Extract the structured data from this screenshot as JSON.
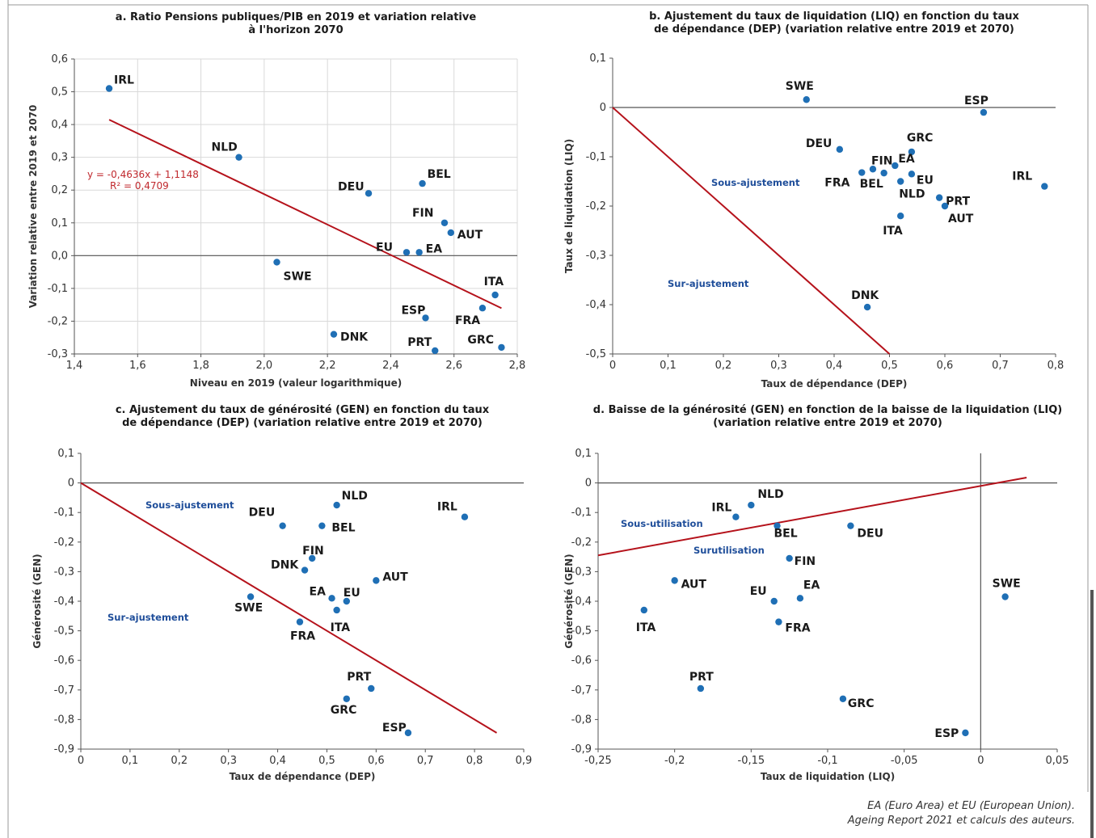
{
  "colors": {
    "point": "#1f6fb5",
    "fit_line": "#b5121b",
    "grid": "#d9d9d9",
    "zero_line": "#555555",
    "annotation": "#1f4e9a"
  },
  "footnote": {
    "line1": "EA (Euro Area) et EU (European Union).",
    "line2_italic": "Ageing Report 2021",
    "line2_rest": " et calculs des auteurs."
  },
  "chart_data": [
    {
      "id": "a",
      "type": "scatter",
      "title": "a. Ratio Pensions publiques/PIB en 2019 et variation relative",
      "title_line2": "à l'horizon 2070",
      "xlabel": "Niveau en 2019 (valeur logarithmique)",
      "ylabel": "Variation relative entre 2019 et 2070",
      "xlim": [
        1.4,
        2.8
      ],
      "ylim": [
        -0.3,
        0.6
      ],
      "xticks": [
        1.4,
        1.6,
        1.8,
        2.0,
        2.2,
        2.4,
        2.6,
        2.8
      ],
      "xtick_labels": [
        "1,4",
        "1,6",
        "1,8",
        "2,0",
        "2,2",
        "2,4",
        "2,6",
        "2,8"
      ],
      "yticks": [
        0.6,
        0.5,
        0.4,
        0.3,
        0.2,
        0.1,
        0.0,
        -0.1,
        -0.2,
        -0.3
      ],
      "ytick_labels": [
        "0,6",
        "0,5",
        "0,4",
        "0,3",
        "0,2",
        "0,1",
        "0,0",
        "-0,1",
        "-0,2",
        "-0,3"
      ],
      "grid": true,
      "points": [
        {
          "label": "IRL",
          "x": 1.51,
          "y": 0.51
        },
        {
          "label": "NLD",
          "x": 1.92,
          "y": 0.3
        },
        {
          "label": "DEU",
          "x": 2.33,
          "y": 0.19
        },
        {
          "label": "BEL",
          "x": 2.5,
          "y": 0.22
        },
        {
          "label": "FIN",
          "x": 2.57,
          "y": 0.1
        },
        {
          "label": "AUT",
          "x": 2.59,
          "y": 0.07
        },
        {
          "label": "EU",
          "x": 2.45,
          "y": 0.01
        },
        {
          "label": "EA",
          "x": 2.49,
          "y": 0.01
        },
        {
          "label": "SWE",
          "x": 2.04,
          "y": -0.02
        },
        {
          "label": "ITA",
          "x": 2.73,
          "y": -0.12
        },
        {
          "label": "ESP",
          "x": 2.51,
          "y": -0.19
        },
        {
          "label": "FRA",
          "x": 2.69,
          "y": -0.16
        },
        {
          "label": "DNK",
          "x": 2.22,
          "y": -0.24
        },
        {
          "label": "PRT",
          "x": 2.54,
          "y": -0.29
        },
        {
          "label": "GRC",
          "x": 2.75,
          "y": -0.28
        }
      ],
      "fit_line": {
        "x": [
          1.51,
          2.75
        ],
        "y": [
          0.4147,
          -0.1603
        ]
      },
      "equation": "y = -0,4636x + 1,1148",
      "r2": "R² = 0,4709",
      "annotations": []
    },
    {
      "id": "b",
      "type": "scatter",
      "title": "b. Ajustement du taux de liquidation (LIQ) en fonction du taux",
      "title_line2": "de dépendance (DEP) (variation relative entre 2019 et 2070)",
      "xlabel": "Taux de dépendance (DEP)",
      "ylabel": "Taux de liquidation (LIQ)",
      "xlim": [
        0,
        0.8
      ],
      "ylim": [
        -0.5,
        0.1
      ],
      "xticks": [
        0,
        0.1,
        0.2,
        0.3,
        0.4,
        0.5,
        0.6,
        0.7,
        0.8
      ],
      "xtick_labels": [
        "0",
        "0,1",
        "0,2",
        "0,3",
        "0,4",
        "0,5",
        "0,6",
        "0,7",
        "0,8"
      ],
      "yticks": [
        0.1,
        0,
        -0.1,
        -0.2,
        -0.3,
        -0.4,
        -0.5
      ],
      "ytick_labels": [
        "0,1",
        "0",
        "-0,1",
        "-0,2",
        "-0,3",
        "-0,4",
        "-0,5"
      ],
      "grid": false,
      "points": [
        {
          "label": "SWE",
          "x": 0.35,
          "y": 0.016
        },
        {
          "label": "ESP",
          "x": 0.67,
          "y": -0.01
        },
        {
          "label": "DEU",
          "x": 0.41,
          "y": -0.085
        },
        {
          "label": "GRC",
          "x": 0.54,
          "y": -0.09
        },
        {
          "label": "FIN",
          "x": 0.47,
          "y": -0.125
        },
        {
          "label": "FRA",
          "x": 0.45,
          "y": -0.132
        },
        {
          "label": "BEL",
          "x": 0.49,
          "y": -0.133
        },
        {
          "label": "EA",
          "x": 0.51,
          "y": -0.118
        },
        {
          "label": "EU",
          "x": 0.54,
          "y": -0.135
        },
        {
          "label": "NLD",
          "x": 0.52,
          "y": -0.15
        },
        {
          "label": "IRL",
          "x": 0.78,
          "y": -0.16
        },
        {
          "label": "PRT",
          "x": 0.59,
          "y": -0.183
        },
        {
          "label": "AUT",
          "x": 0.6,
          "y": -0.2
        },
        {
          "label": "ITA",
          "x": 0.52,
          "y": -0.22
        },
        {
          "label": "DNK",
          "x": 0.46,
          "y": -0.405
        }
      ],
      "fit_line": {
        "x": [
          0,
          0.5
        ],
        "y": [
          0,
          -0.5
        ]
      },
      "annotations": [
        "Sous-ajustement",
        "Sur-ajustement"
      ]
    },
    {
      "id": "c",
      "type": "scatter",
      "title": "c. Ajustement du taux de générosité (GEN) en fonction du taux",
      "title_line2": "de dépendance (DEP) (variation relative entre 2019 et 2070)",
      "xlabel": "Taux de dépendance (DEP)",
      "ylabel": "Générosité (GEN)",
      "xlim": [
        0,
        0.9
      ],
      "ylim": [
        -0.9,
        0.1
      ],
      "xticks": [
        0,
        0.1,
        0.2,
        0.3,
        0.4,
        0.5,
        0.6,
        0.7,
        0.8,
        0.9
      ],
      "xtick_labels": [
        "0",
        "0,1",
        "0,2",
        "0,3",
        "0,4",
        "0,5",
        "0,6",
        "0,7",
        "0,8",
        "0,9"
      ],
      "yticks": [
        0.1,
        0,
        -0.1,
        -0.2,
        -0.3,
        -0.4,
        -0.5,
        -0.6,
        -0.7,
        -0.8,
        -0.9
      ],
      "ytick_labels": [
        "0,1",
        "0",
        "-0,1",
        "-0,2",
        "-0,3",
        "-0,4",
        "-0,5",
        "-0,6",
        "-0,7",
        "-0,8",
        "-0,9"
      ],
      "grid": false,
      "points": [
        {
          "label": "NLD",
          "x": 0.52,
          "y": -0.075
        },
        {
          "label": "IRL",
          "x": 0.78,
          "y": -0.115
        },
        {
          "label": "DEU",
          "x": 0.41,
          "y": -0.145
        },
        {
          "label": "BEL",
          "x": 0.49,
          "y": -0.145
        },
        {
          "label": "FIN",
          "x": 0.47,
          "y": -0.255
        },
        {
          "label": "DNK",
          "x": 0.455,
          "y": -0.295
        },
        {
          "label": "AUT",
          "x": 0.6,
          "y": -0.33
        },
        {
          "label": "SWE",
          "x": 0.345,
          "y": -0.385
        },
        {
          "label": "EA",
          "x": 0.51,
          "y": -0.39
        },
        {
          "label": "EU",
          "x": 0.54,
          "y": -0.4
        },
        {
          "label": "ITA",
          "x": 0.52,
          "y": -0.43
        },
        {
          "label": "FRA",
          "x": 0.445,
          "y": -0.47
        },
        {
          "label": "PRT",
          "x": 0.59,
          "y": -0.695
        },
        {
          "label": "GRC",
          "x": 0.54,
          "y": -0.73
        },
        {
          "label": "ESP",
          "x": 0.665,
          "y": -0.845
        }
      ],
      "fit_line": {
        "x": [
          0,
          0.845
        ],
        "y": [
          0,
          -0.845
        ]
      },
      "annotations": [
        "Sous-ajustement",
        "Sur-ajustement"
      ]
    },
    {
      "id": "d",
      "type": "scatter",
      "title": "d. Baisse de la générosité (GEN) en fonction de la baisse de la liquidation (LIQ)",
      "title_line2": "(variation relative entre 2019 et 2070)",
      "xlabel": "Taux de liquidation (LIQ)",
      "ylabel": "Générosité (GEN)",
      "xlim": [
        -0.25,
        0.05
      ],
      "ylim": [
        -0.9,
        0.1
      ],
      "xticks": [
        -0.25,
        -0.2,
        -0.15,
        -0.1,
        -0.05,
        0,
        0.05
      ],
      "xtick_labels": [
        "-0,25",
        "-0,2",
        "-0,15",
        "-0,1",
        "-0,05",
        "0",
        "0,05"
      ],
      "yticks": [
        0.1,
        0,
        -0.1,
        -0.2,
        -0.3,
        -0.4,
        -0.5,
        -0.6,
        -0.7,
        -0.8,
        -0.9
      ],
      "ytick_labels": [
        "0,1",
        "0",
        "-0,1",
        "-0,2",
        "-0,3",
        "-0,4",
        "-0,5",
        "-0,6",
        "-0,7",
        "-0,8",
        "-0,9"
      ],
      "grid": false,
      "points": [
        {
          "label": "IRL",
          "x": -0.16,
          "y": -0.115
        },
        {
          "label": "NLD",
          "x": -0.15,
          "y": -0.075
        },
        {
          "label": "BEL",
          "x": -0.133,
          "y": -0.145
        },
        {
          "label": "DEU",
          "x": -0.085,
          "y": -0.145
        },
        {
          "label": "FIN",
          "x": -0.125,
          "y": -0.255
        },
        {
          "label": "AUT",
          "x": -0.2,
          "y": -0.33
        },
        {
          "label": "EU",
          "x": -0.135,
          "y": -0.4
        },
        {
          "label": "EA",
          "x": -0.118,
          "y": -0.39
        },
        {
          "label": "FRA",
          "x": -0.132,
          "y": -0.47
        },
        {
          "label": "ITA",
          "x": -0.22,
          "y": -0.43
        },
        {
          "label": "SWE",
          "x": 0.016,
          "y": -0.385
        },
        {
          "label": "PRT",
          "x": -0.183,
          "y": -0.695
        },
        {
          "label": "GRC",
          "x": -0.09,
          "y": -0.73
        },
        {
          "label": "ESP",
          "x": -0.01,
          "y": -0.845
        }
      ],
      "fit_line": {
        "x": [
          -0.25,
          0.03
        ],
        "y": [
          -0.245,
          0.018
        ]
      },
      "annotations": [
        "Sous-utilisation",
        "Surutilisation"
      ]
    }
  ]
}
